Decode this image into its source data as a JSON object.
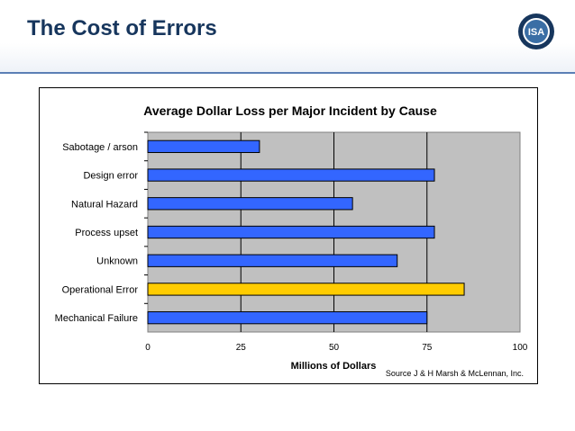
{
  "slide": {
    "title": "The Cost of Errors"
  },
  "logo": {
    "text": "ISA",
    "icon": "isa-logo-icon"
  },
  "colors": {
    "title": "#17365d",
    "bar_default": "#3366ff",
    "bar_highlight": "#ffcc00",
    "plot_background": "#c0c0c0"
  },
  "chart_data": {
    "type": "bar",
    "orientation": "horizontal",
    "title": "Average Dollar Loss per Major Incident by Cause",
    "xlabel": "Millions of Dollars",
    "ylabel": "",
    "categories": [
      "Sabotage / arson",
      "Design error",
      "Natural Hazard",
      "Process upset",
      "Unknown",
      "Operational Error",
      "Mechanical Failure"
    ],
    "values": [
      30,
      77,
      55,
      77,
      67,
      85,
      75
    ],
    "highlight": "Operational Error",
    "xlim": [
      0,
      100
    ],
    "xticks": [
      "0",
      "25",
      "50",
      "75",
      "100"
    ],
    "grid": "vertical",
    "legend": "none",
    "source": "Source J & H Marsh & McLennan, Inc."
  }
}
